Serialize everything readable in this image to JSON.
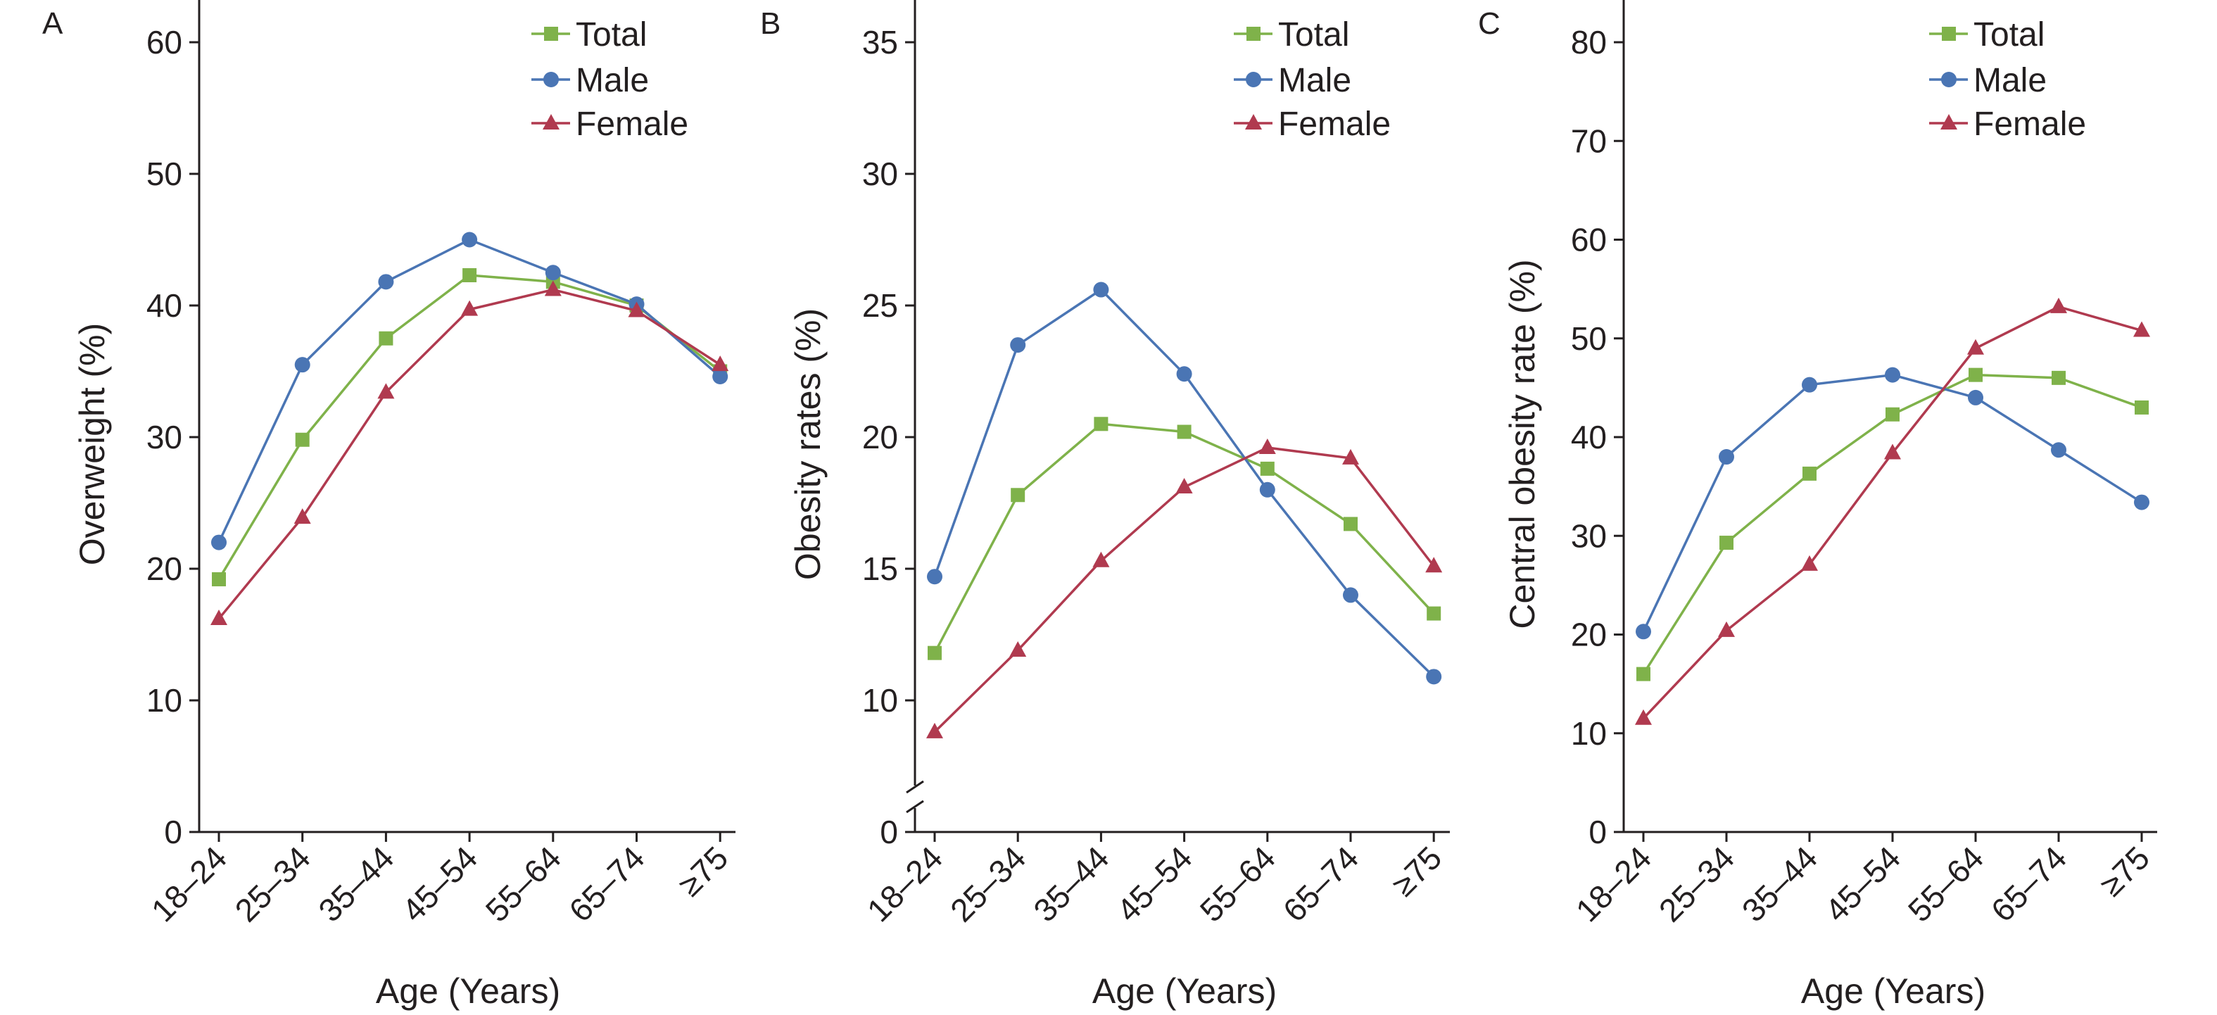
{
  "chart_data": [
    {
      "panel": "A",
      "type": "line",
      "categories": [
        "18–24",
        "25–34",
        "35–44",
        "45–54",
        "55–64",
        "65–74",
        "≥75"
      ],
      "xlabel": "Age (Years)",
      "ylabel": "Overweight (%)",
      "ylim": [
        0,
        60
      ],
      "yticks": [
        "0",
        "10",
        "20",
        "30",
        "40",
        "50",
        "60"
      ],
      "axis_break": false,
      "legend_position": "top-right",
      "series": [
        {
          "name": "Total",
          "marker": "square",
          "color": "#7fb24a",
          "values": [
            19.2,
            29.8,
            37.5,
            42.3,
            41.8,
            40.0,
            35.0
          ]
        },
        {
          "name": "Male",
          "marker": "circle",
          "color": "#4a75b4",
          "values": [
            22.0,
            35.5,
            41.8,
            45.0,
            42.5,
            40.1,
            34.6
          ]
        },
        {
          "name": "Female",
          "marker": "triangle",
          "color": "#b03a4f",
          "values": [
            16.2,
            23.9,
            33.4,
            39.7,
            41.2,
            39.6,
            35.5
          ]
        }
      ]
    },
    {
      "panel": "B",
      "type": "line",
      "categories": [
        "18–24",
        "25–34",
        "35–44",
        "45–54",
        "55–64",
        "65–74",
        "≥75"
      ],
      "xlabel": "Age (Years)",
      "ylabel": "Obesity rates (%)",
      "ylim": [
        5,
        35
      ],
      "yticks": [
        "0",
        "10",
        "15",
        "20",
        "25",
        "30",
        "35"
      ],
      "axis_break": true,
      "legend_position": "top-right",
      "series": [
        {
          "name": "Total",
          "marker": "square",
          "color": "#7fb24a",
          "values": [
            11.8,
            17.8,
            20.5,
            20.2,
            18.8,
            16.7,
            13.3
          ]
        },
        {
          "name": "Male",
          "marker": "circle",
          "color": "#4a75b4",
          "values": [
            14.7,
            23.5,
            25.6,
            22.4,
            18.0,
            14.0,
            10.9
          ]
        },
        {
          "name": "Female",
          "marker": "triangle",
          "color": "#b03a4f",
          "values": [
            8.8,
            11.9,
            15.3,
            18.1,
            19.6,
            19.2,
            15.1
          ]
        }
      ]
    },
    {
      "panel": "C",
      "type": "line",
      "categories": [
        "18–24",
        "25–34",
        "35–44",
        "45–54",
        "55–64",
        "65–74",
        "≥75"
      ],
      "xlabel": "Age (Years)",
      "ylabel": "Central obesity rate (%)",
      "ylim": [
        0,
        80
      ],
      "yticks": [
        "0",
        "10",
        "20",
        "30",
        "40",
        "50",
        "60",
        "70",
        "80"
      ],
      "axis_break": false,
      "legend_position": "top-right",
      "series": [
        {
          "name": "Total",
          "marker": "square",
          "color": "#7fb24a",
          "values": [
            16.0,
            29.3,
            36.3,
            42.3,
            46.3,
            46.0,
            43.0
          ]
        },
        {
          "name": "Male",
          "marker": "circle",
          "color": "#4a75b4",
          "values": [
            20.3,
            38.0,
            45.3,
            46.3,
            44.0,
            38.7,
            33.4
          ]
        },
        {
          "name": "Female",
          "marker": "triangle",
          "color": "#b03a4f",
          "values": [
            11.5,
            20.4,
            27.1,
            38.4,
            49.0,
            53.2,
            50.8
          ]
        }
      ]
    }
  ]
}
